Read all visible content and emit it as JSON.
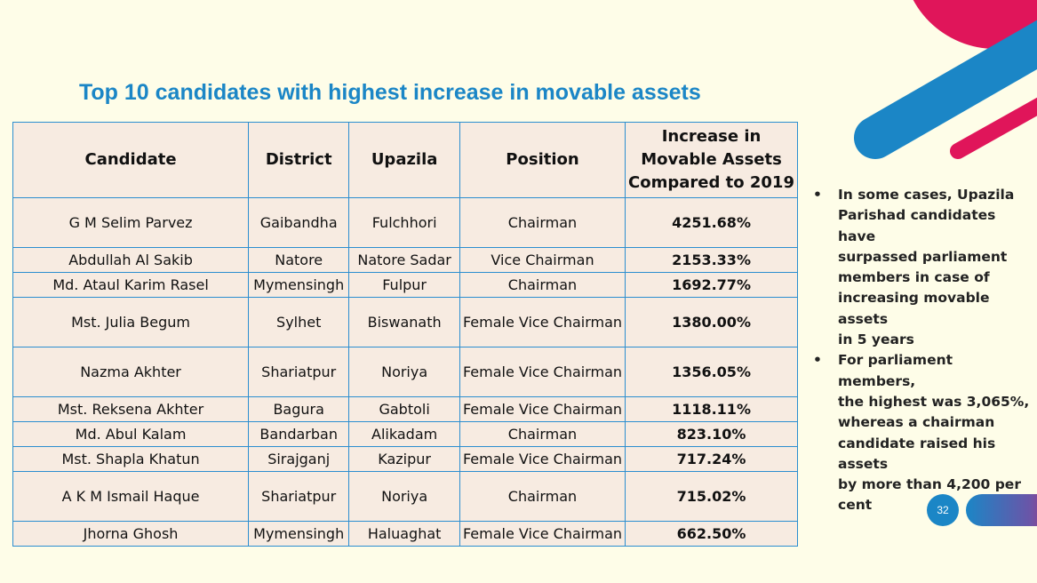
{
  "title": "Top 10 candidates with highest increase in movable assets",
  "table": {
    "headers": {
      "candidate": "Candidate",
      "district": "District",
      "upazila": "Upazila",
      "position": "Position",
      "increase_line1": "Increase in",
      "increase_line2": "Movable Assets",
      "increase_line3": "Compared to 2019"
    },
    "rows": [
      {
        "candidate": "G M Selim Parvez",
        "district": "Gaibandha",
        "upazila": "Fulchhori",
        "position": "Chairman",
        "increase": "4251.68%"
      },
      {
        "candidate": "Abdullah Al Sakib",
        "district": "Natore",
        "upazila": "Natore Sadar",
        "position": "Vice Chairman",
        "increase": "2153.33%"
      },
      {
        "candidate": "Md. Ataul Karim Rasel",
        "district": "Mymensingh",
        "upazila": "Fulpur",
        "position": "Chairman",
        "increase": "1692.77%"
      },
      {
        "candidate": "Mst. Julia Begum",
        "district": "Sylhet",
        "upazila": "Biswanath",
        "position": "Female Vice Chairman",
        "increase": "1380.00%"
      },
      {
        "candidate": "Nazma Akhter",
        "district": "Shariatpur",
        "upazila": "Noriya",
        "position": "Female Vice Chairman",
        "increase": "1356.05%"
      },
      {
        "candidate": "Mst. Reksena Akhter",
        "district": "Bagura",
        "upazila": "Gabtoli",
        "position": "Female Vice Chairman",
        "increase": "1118.11%"
      },
      {
        "candidate": "Md. Abul Kalam",
        "district": "Bandarban",
        "upazila": "Alikadam",
        "position": "Chairman",
        "increase": "823.10%"
      },
      {
        "candidate": "Mst. Shapla Khatun",
        "district": "Sirajganj",
        "upazila": "Kazipur",
        "position": "Female Vice Chairman",
        "increase": "717.24%"
      },
      {
        "candidate": "A K M Ismail Haque",
        "district": "Shariatpur",
        "upazila": "Noriya",
        "position": "Chairman",
        "increase": "715.02%"
      },
      {
        "candidate": "Jhorna Ghosh",
        "district": "Mymensingh",
        "upazila": "Haluaghat",
        "position": "Female Vice Chairman",
        "increase": "662.50%"
      }
    ]
  },
  "notes": {
    "bullet_symbol": "•",
    "items": [
      {
        "lines": [
          "In some cases, Upazila",
          "Parishad candidates have",
          "surpassed parliament",
          "members in case of",
          "increasing movable assets",
          "in 5 years"
        ]
      },
      {
        "lines": [
          "For parliament members,",
          "the highest was 3,065%,",
          "whereas a chairman",
          "candidate raised his assets",
          "by more than 4,200 per",
          "cent"
        ]
      }
    ]
  },
  "page_number": "32",
  "colors": {
    "accent_blue": "#1b86c6",
    "accent_pink": "#d81b60",
    "background": "#fefde8",
    "cell_fill": "#f7ebe1"
  }
}
